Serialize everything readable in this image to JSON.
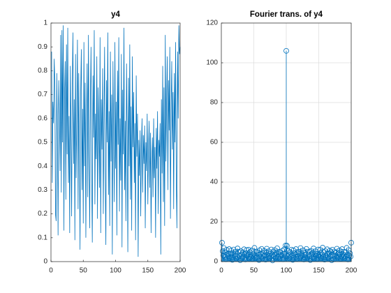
{
  "chart_data": [
    {
      "type": "line",
      "title": "y4",
      "color": "#0072BD",
      "grid": false,
      "xlim": [
        0,
        200
      ],
      "xticks": [
        0,
        50,
        100,
        150,
        200
      ],
      "ylim": [
        0,
        1
      ],
      "yticks": [
        0,
        0.1,
        0.2,
        0.3,
        0.4,
        0.5,
        0.6,
        0.7,
        0.8,
        0.9,
        1
      ],
      "x": [
        1,
        2,
        3,
        4,
        5,
        6,
        7,
        8,
        9,
        10,
        11,
        12,
        13,
        14,
        15,
        16,
        17,
        18,
        19,
        20,
        21,
        22,
        23,
        24,
        25,
        26,
        27,
        28,
        29,
        30,
        31,
        32,
        33,
        34,
        35,
        36,
        37,
        38,
        39,
        40,
        41,
        42,
        43,
        44,
        45,
        46,
        47,
        48,
        49,
        50,
        51,
        52,
        53,
        54,
        55,
        56,
        57,
        58,
        59,
        60,
        61,
        62,
        63,
        64,
        65,
        66,
        67,
        68,
        69,
        70,
        71,
        72,
        73,
        74,
        75,
        76,
        77,
        78,
        79,
        80,
        81,
        82,
        83,
        84,
        85,
        86,
        87,
        88,
        89,
        90,
        91,
        92,
        93,
        94,
        95,
        96,
        97,
        98,
        99,
        100,
        101,
        102,
        103,
        104,
        105,
        106,
        107,
        108,
        109,
        110,
        111,
        112,
        113,
        114,
        115,
        116,
        117,
        118,
        119,
        120,
        121,
        122,
        123,
        124,
        125,
        126,
        127,
        128,
        129,
        130,
        131,
        132,
        133,
        134,
        135,
        136,
        137,
        138,
        139,
        140,
        141,
        142,
        143,
        144,
        145,
        146,
        147,
        148,
        149,
        150,
        151,
        152,
        153,
        154,
        155,
        156,
        157,
        158,
        159,
        160,
        161,
        162,
        163,
        164,
        165,
        166,
        167,
        168,
        169,
        170,
        171,
        172,
        173,
        174,
        175,
        176,
        177,
        178,
        179,
        180,
        181,
        182,
        183,
        184,
        185,
        186,
        187,
        188,
        189,
        190,
        191,
        192,
        193,
        194,
        195,
        196,
        197,
        198,
        199,
        200
      ],
      "values": [
        0.88,
        0.33,
        0.67,
        0.58,
        0.85,
        0.74,
        0.2,
        0.17,
        0.79,
        0.52,
        0.11,
        0.76,
        0.62,
        0.38,
        0.95,
        0.29,
        0.97,
        0.5,
        0.99,
        0.13,
        0.7,
        0.84,
        0.26,
        0.91,
        0.45,
        0.98,
        0.33,
        0.61,
        0.12,
        0.82,
        0.55,
        0.19,
        0.73,
        0.96,
        0.41,
        0.68,
        0.09,
        0.87,
        0.35,
        0.6,
        0.93,
        0.22,
        0.79,
        0.48,
        0.05,
        0.71,
        0.89,
        0.3,
        0.64,
        0.16,
        0.92,
        0.4,
        0.75,
        0.1,
        0.57,
        0.83,
        0.27,
        0.95,
        0.46,
        0.14,
        0.66,
        0.9,
        0.36,
        0.08,
        0.78,
        0.52,
        0.97,
        0.24,
        0.62,
        0.43,
        0.86,
        0.18,
        0.73,
        0.55,
        0.31,
        0.94,
        0.12,
        0.68,
        0.47,
        0.81,
        0.2,
        0.58,
        0.9,
        0.37,
        0.07,
        0.76,
        0.5,
        0.96,
        0.28,
        0.63,
        0.15,
        0.88,
        0.42,
        0.7,
        0.03,
        0.84,
        0.56,
        0.25,
        0.92,
        0.39,
        0.67,
        0.11,
        0.8,
        0.49,
        0.94,
        0.21,
        0.6,
        0.34,
        0.87,
        0.06,
        0.72,
        0.45,
        0.98,
        0.3,
        0.59,
        0.17,
        0.83,
        0.52,
        0.04,
        0.77,
        0.4,
        0.91,
        0.26,
        0.65,
        0.13,
        0.86,
        0.48,
        0.71,
        0.33,
        0.58,
        0.09,
        0.78,
        0.44,
        0.62,
        0.02,
        0.51,
        0.36,
        0.55,
        0.19,
        0.47,
        0.6,
        0.29,
        0.53,
        0.41,
        0.57,
        0.14,
        0.5,
        0.38,
        0.62,
        0.24,
        0.46,
        0.59,
        0.31,
        0.54,
        0.12,
        0.43,
        0.52,
        0.27,
        0.6,
        0.35,
        0.48,
        0.1,
        0.56,
        0.39,
        0.63,
        0.2,
        0.51,
        0.44,
        0.58,
        0.03,
        0.68,
        0.37,
        0.82,
        0.25,
        0.73,
        0.15,
        0.95,
        0.42,
        0.66,
        0.86,
        0.3,
        0.76,
        0.55,
        0.9,
        0.18,
        0.62,
        0.84,
        0.47,
        0.71,
        0.22,
        0.79,
        0.5,
        0.92,
        0.34,
        0.14,
        0.88,
        0.6,
        0.99,
        0.87,
        0.9
      ]
    },
    {
      "type": "stem",
      "title": "Fourier trans. of y4",
      "color": "#0072BD",
      "grid": true,
      "xlim": [
        0,
        200
      ],
      "xticks": [
        0,
        50,
        100,
        150,
        200
      ],
      "ylim": [
        0,
        120
      ],
      "yticks": [
        0,
        20,
        40,
        60,
        80,
        100,
        120
      ],
      "x": [
        1,
        2,
        3,
        4,
        5,
        6,
        7,
        8,
        9,
        10,
        11,
        12,
        13,
        14,
        15,
        16,
        17,
        18,
        19,
        20,
        21,
        22,
        23,
        24,
        25,
        26,
        27,
        28,
        29,
        30,
        31,
        32,
        33,
        34,
        35,
        36,
        37,
        38,
        39,
        40,
        41,
        42,
        43,
        44,
        45,
        46,
        47,
        48,
        49,
        50,
        51,
        52,
        53,
        54,
        55,
        56,
        57,
        58,
        59,
        60,
        61,
        62,
        63,
        64,
        65,
        66,
        67,
        68,
        69,
        70,
        71,
        72,
        73,
        74,
        75,
        76,
        77,
        78,
        79,
        80,
        81,
        82,
        83,
        84,
        85,
        86,
        87,
        88,
        89,
        90,
        91,
        92,
        93,
        94,
        95,
        96,
        97,
        98,
        99,
        100,
        101,
        102,
        103,
        104,
        105,
        106,
        107,
        108,
        109,
        110,
        111,
        112,
        113,
        114,
        115,
        116,
        117,
        118,
        119,
        120,
        121,
        122,
        123,
        124,
        125,
        126,
        127,
        128,
        129,
        130,
        131,
        132,
        133,
        134,
        135,
        136,
        137,
        138,
        139,
        140,
        141,
        142,
        143,
        144,
        145,
        146,
        147,
        148,
        149,
        150,
        151,
        152,
        153,
        154,
        155,
        156,
        157,
        158,
        159,
        160,
        161,
        162,
        163,
        164,
        165,
        166,
        167,
        168,
        169,
        170,
        171,
        172,
        173,
        174,
        175,
        176,
        177,
        178,
        179,
        180,
        181,
        182,
        183,
        184,
        185,
        186,
        187,
        188,
        189,
        190,
        191,
        192,
        193,
        194,
        195,
        196,
        197,
        198,
        199,
        200
      ],
      "values": [
        9.5,
        5.2,
        3.1,
        6.8,
        2.4,
        4.7,
        1.2,
        5.9,
        3.6,
        2.8,
        4.1,
        6.3,
        1.8,
        3.9,
        5.5,
        2.2,
        0.9,
        4.4,
        6.1,
        3.3,
        2.7,
        5.0,
        1.5,
        3.8,
        6.6,
        2.1,
        4.9,
        3.0,
        0.7,
        5.3,
        3.5,
        1.9,
        4.6,
        2.5,
        6.2,
        3.7,
        1.1,
        4.2,
        5.8,
        2.9,
        3.4,
        6.0,
        1.6,
        4.8,
        2.3,
        3.1,
        5.6,
        1.3,
        4.0,
        2.6,
        6.9,
        3.2,
        1.7,
        5.1,
        2.0,
        4.5,
        3.6,
        0.8,
        5.7,
        2.4,
        3.9,
        6.4,
        1.4,
        4.3,
        2.8,
        5.4,
        3.0,
        1.0,
        4.7,
        6.5,
        2.2,
        3.5,
        5.2,
        1.8,
        4.1,
        2.7,
        6.1,
        3.3,
        0.6,
        4.9,
        2.5,
        5.8,
        3.7,
        1.9,
        4.4,
        6.7,
        2.1,
        3.8,
        5.0,
        1.5,
        4.6,
        2.9,
        3.2,
        5.5,
        1.2,
        4.0,
        6.2,
        2.6,
        8.1,
        106.0,
        8.0,
        2.7,
        5.3,
        3.4,
        1.6,
        4.8,
        2.3,
        6.0,
        3.1,
        0.9,
        5.6,
        2.0,
        4.2,
        3.6,
        6.3,
        1.4,
        4.5,
        2.8,
        5.1,
        3.9,
        1.7,
        6.8,
        2.4,
        4.1,
        3.0,
        5.7,
        1.1,
        4.6,
        2.2,
        3.5,
        6.4,
        1.9,
        5.0,
        3.3,
        2.6,
        4.9,
        0.8,
        5.4,
        3.8,
        2.1,
        4.3,
        6.6,
        1.5,
        3.7,
        5.2,
        2.9,
        4.0,
        1.3,
        6.1,
        3.2,
        2.5,
        5.9,
        4.4,
        1.8,
        3.6,
        7.0,
        2.3,
        4.7,
        1.0,
        5.3,
        3.1,
        2.0,
        6.2,
        4.2,
        1.6,
        3.9,
        5.5,
        2.7,
        4.8,
        0.7,
        6.0,
        3.4,
        1.2,
        5.1,
        2.8,
        4.5,
        3.0,
        6.5,
        1.9,
        4.1,
        2.4,
        5.6,
        3.7,
        1.4,
        4.9,
        6.3,
        2.2,
        3.5,
        5.0,
        1.7,
        4.6,
        2.6,
        6.9,
        3.3,
        1.1,
        5.8,
        3.0,
        4.2,
        2.5,
        9.5
      ]
    }
  ]
}
